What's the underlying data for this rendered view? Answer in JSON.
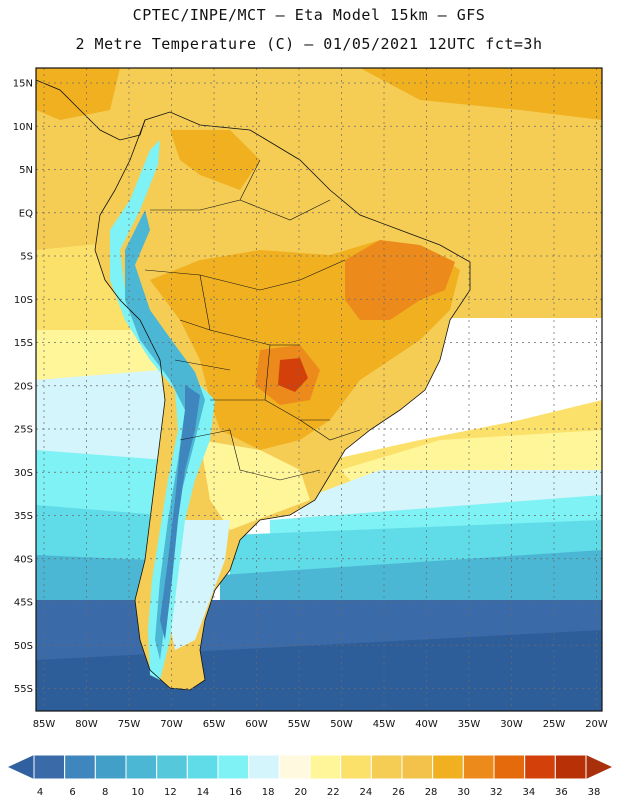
{
  "header": {
    "line1": "CPTEC/INPE/MCT –  Eta Model 15km – GFS",
    "line2": "2 Metre Temperature (C) – 01/05/2021 12UTC fct=3h"
  },
  "lat_labels": [
    "15N",
    "10N",
    "5N",
    "EQ",
    "5S",
    "10S",
    "15S",
    "20S",
    "25S",
    "30S",
    "35S",
    "40S",
    "45S",
    "50S",
    "55S"
  ],
  "lon_labels": [
    "85W",
    "80W",
    "75W",
    "70W",
    "65W",
    "60W",
    "55W",
    "50W",
    "45W",
    "40W",
    "35W",
    "30W",
    "25W",
    "20W"
  ],
  "legend": {
    "labels": [
      "4",
      "6",
      "8",
      "10",
      "12",
      "14",
      "16",
      "18",
      "20",
      "22",
      "24",
      "26",
      "28",
      "30",
      "32",
      "34",
      "36",
      "38"
    ],
    "colors": [
      "#3a6aa8",
      "#3e86bd",
      "#42a0c8",
      "#4cb7d4",
      "#55c8dc",
      "#5fdce8",
      "#7ef2f4",
      "#d4f5fb",
      "#fff9e0",
      "#fff599",
      "#fbe06a",
      "#f5cd55",
      "#f2c24a",
      "#f0b020",
      "#ec8a1c",
      "#e46a0c",
      "#d4400a",
      "#b83006"
    ],
    "left_arrow_color": "#3060a0",
    "right_arrow_color": "#a8300a"
  },
  "field_colors": {
    "ocean_n": "#f5cd55",
    "ocean_n2": "#fbe06a",
    "ocean_mid": "#fff599",
    "ocean_cool": "#d4f5fb",
    "ocean_c1": "#7ef2f4",
    "ocean_c2": "#5fdce8",
    "ocean_c3": "#4cb7d4",
    "ocean_c4": "#3a6aa8",
    "ocean_s": "#2e5e9a",
    "land_warm": "#f0b020",
    "land_hot": "#ec8a1c",
    "land_hotter": "#d4400a",
    "andes_1": "#7ef2f4",
    "andes_2": "#4cb7d4",
    "andes_3": "#3e86bd"
  }
}
